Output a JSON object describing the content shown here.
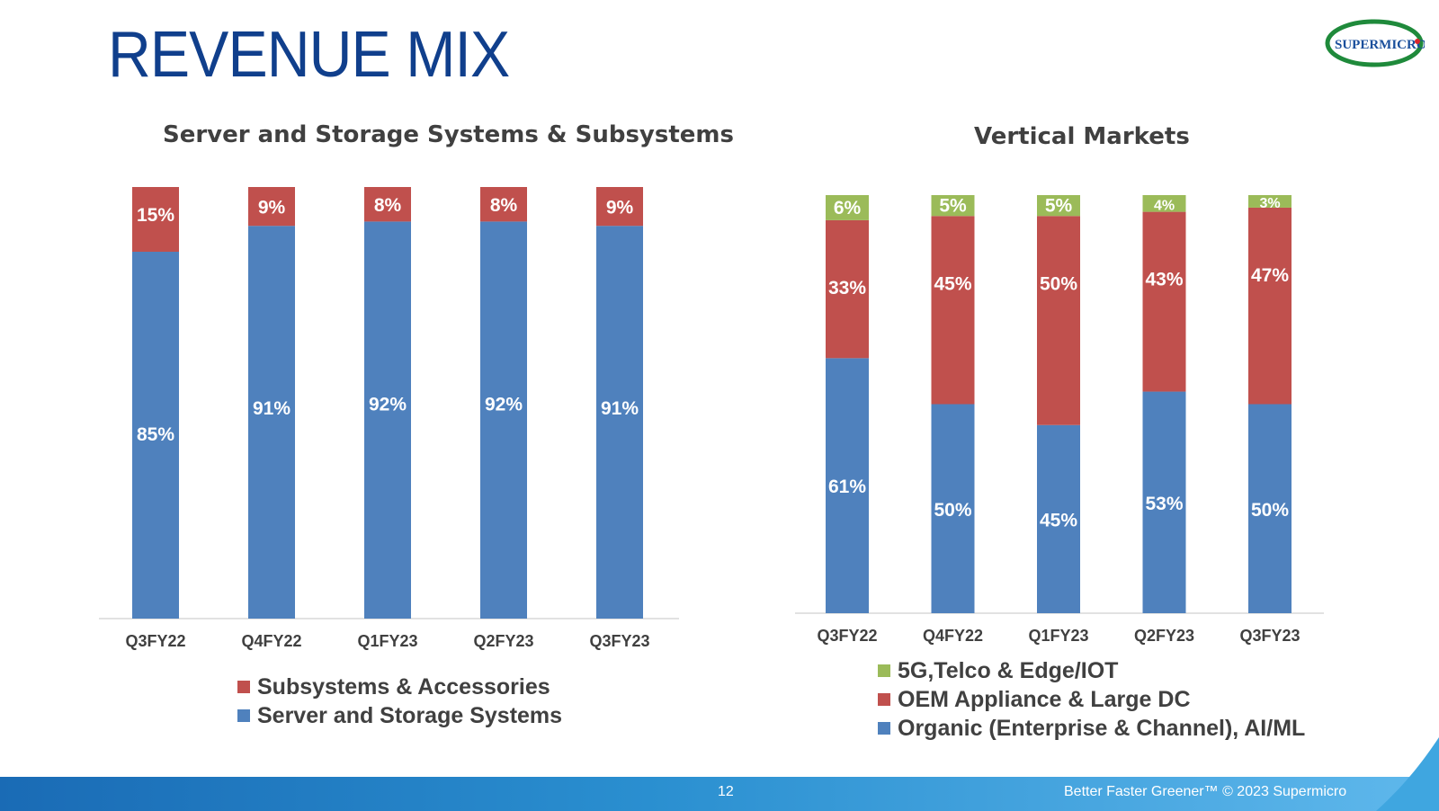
{
  "slide": {
    "title": "REVENUE MIX",
    "logo_text": "SUPERMICRO",
    "page_number": "12",
    "tagline": "Better Faster Greener™  © 2023 Supermicro"
  },
  "colors": {
    "title": "#103f8c",
    "blue": "#4f81bd",
    "red": "#c0504d",
    "green": "#9bbb59",
    "footer": "#2a8fd0"
  },
  "chart_data": [
    {
      "type": "bar",
      "stacked": true,
      "title": "Server and Storage Systems & Subsystems",
      "categories": [
        "Q3FY22",
        "Q4FY22",
        "Q1FY23",
        "Q2FY23",
        "Q3FY23"
      ],
      "series": [
        {
          "name": "Server and Storage Systems",
          "color": "#4f81bd",
          "values": [
            85,
            91,
            92,
            92,
            91
          ],
          "labels": [
            "85%",
            "91%",
            "92%",
            "92%",
            "91%"
          ]
        },
        {
          "name": "Subsystems & Accessories",
          "color": "#c0504d",
          "values": [
            15,
            9,
            8,
            8,
            9
          ],
          "labels": [
            "15%",
            "9%",
            "8%",
            "8%",
            "9%"
          ]
        }
      ],
      "legend": [
        "Subsystems & Accessories",
        "Server and Storage Systems"
      ],
      "ylim": [
        0,
        100
      ],
      "grid": false,
      "legend_position": "bottom"
    },
    {
      "type": "bar",
      "stacked": true,
      "title": "Vertical Markets",
      "categories": [
        "Q3FY22",
        "Q4FY22",
        "Q1FY23",
        "Q2FY23",
        "Q3FY23"
      ],
      "series": [
        {
          "name": "Organic (Enterprise & Channel), AI/ML",
          "color": "#4f81bd",
          "values": [
            61,
            50,
            45,
            53,
            50
          ],
          "labels": [
            "61%",
            "50%",
            "45%",
            "53%",
            "50%"
          ]
        },
        {
          "name": "OEM Appliance & Large DC",
          "color": "#c0504d",
          "values": [
            33,
            45,
            50,
            43,
            47
          ],
          "labels": [
            "33%",
            "45%",
            "50%",
            "43%",
            "47%"
          ]
        },
        {
          "name": "5G,Telco & Edge/IOT",
          "color": "#9bbb59",
          "values": [
            6,
            5,
            5,
            4,
            3
          ],
          "labels": [
            "6%",
            "5%",
            "5%",
            "4%",
            "3%"
          ]
        }
      ],
      "legend": [
        "5G,Telco & Edge/IOT",
        "OEM Appliance & Large DC",
        "Organic (Enterprise & Channel), AI/ML"
      ],
      "ylim": [
        0,
        100
      ],
      "grid": false,
      "legend_position": "bottom"
    }
  ]
}
